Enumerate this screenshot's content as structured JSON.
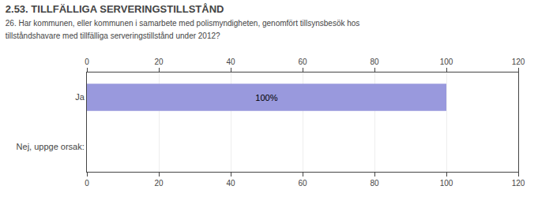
{
  "chart_data": {
    "type": "bar",
    "orientation": "horizontal",
    "title": "2.53. TILLFÄLLIGA SERVERINGSTILLSTÅND",
    "subtitle": "26. Har kommunen, eller kommunen i samarbete med polismyndigheten, genomfört tillsynsbesök hos\ntillståndshavare med tillfälliga serveringstillstånd under 2012?",
    "categories": [
      "Ja",
      "Nej, uppge orsak:"
    ],
    "values": [
      100,
      0
    ],
    "value_labels": [
      "100%",
      null
    ],
    "data_labels": true,
    "color": "#9999dd",
    "xlim": [
      0,
      120
    ],
    "xticks": [
      0,
      20,
      40,
      60,
      80,
      100,
      120
    ],
    "grid": true
  }
}
